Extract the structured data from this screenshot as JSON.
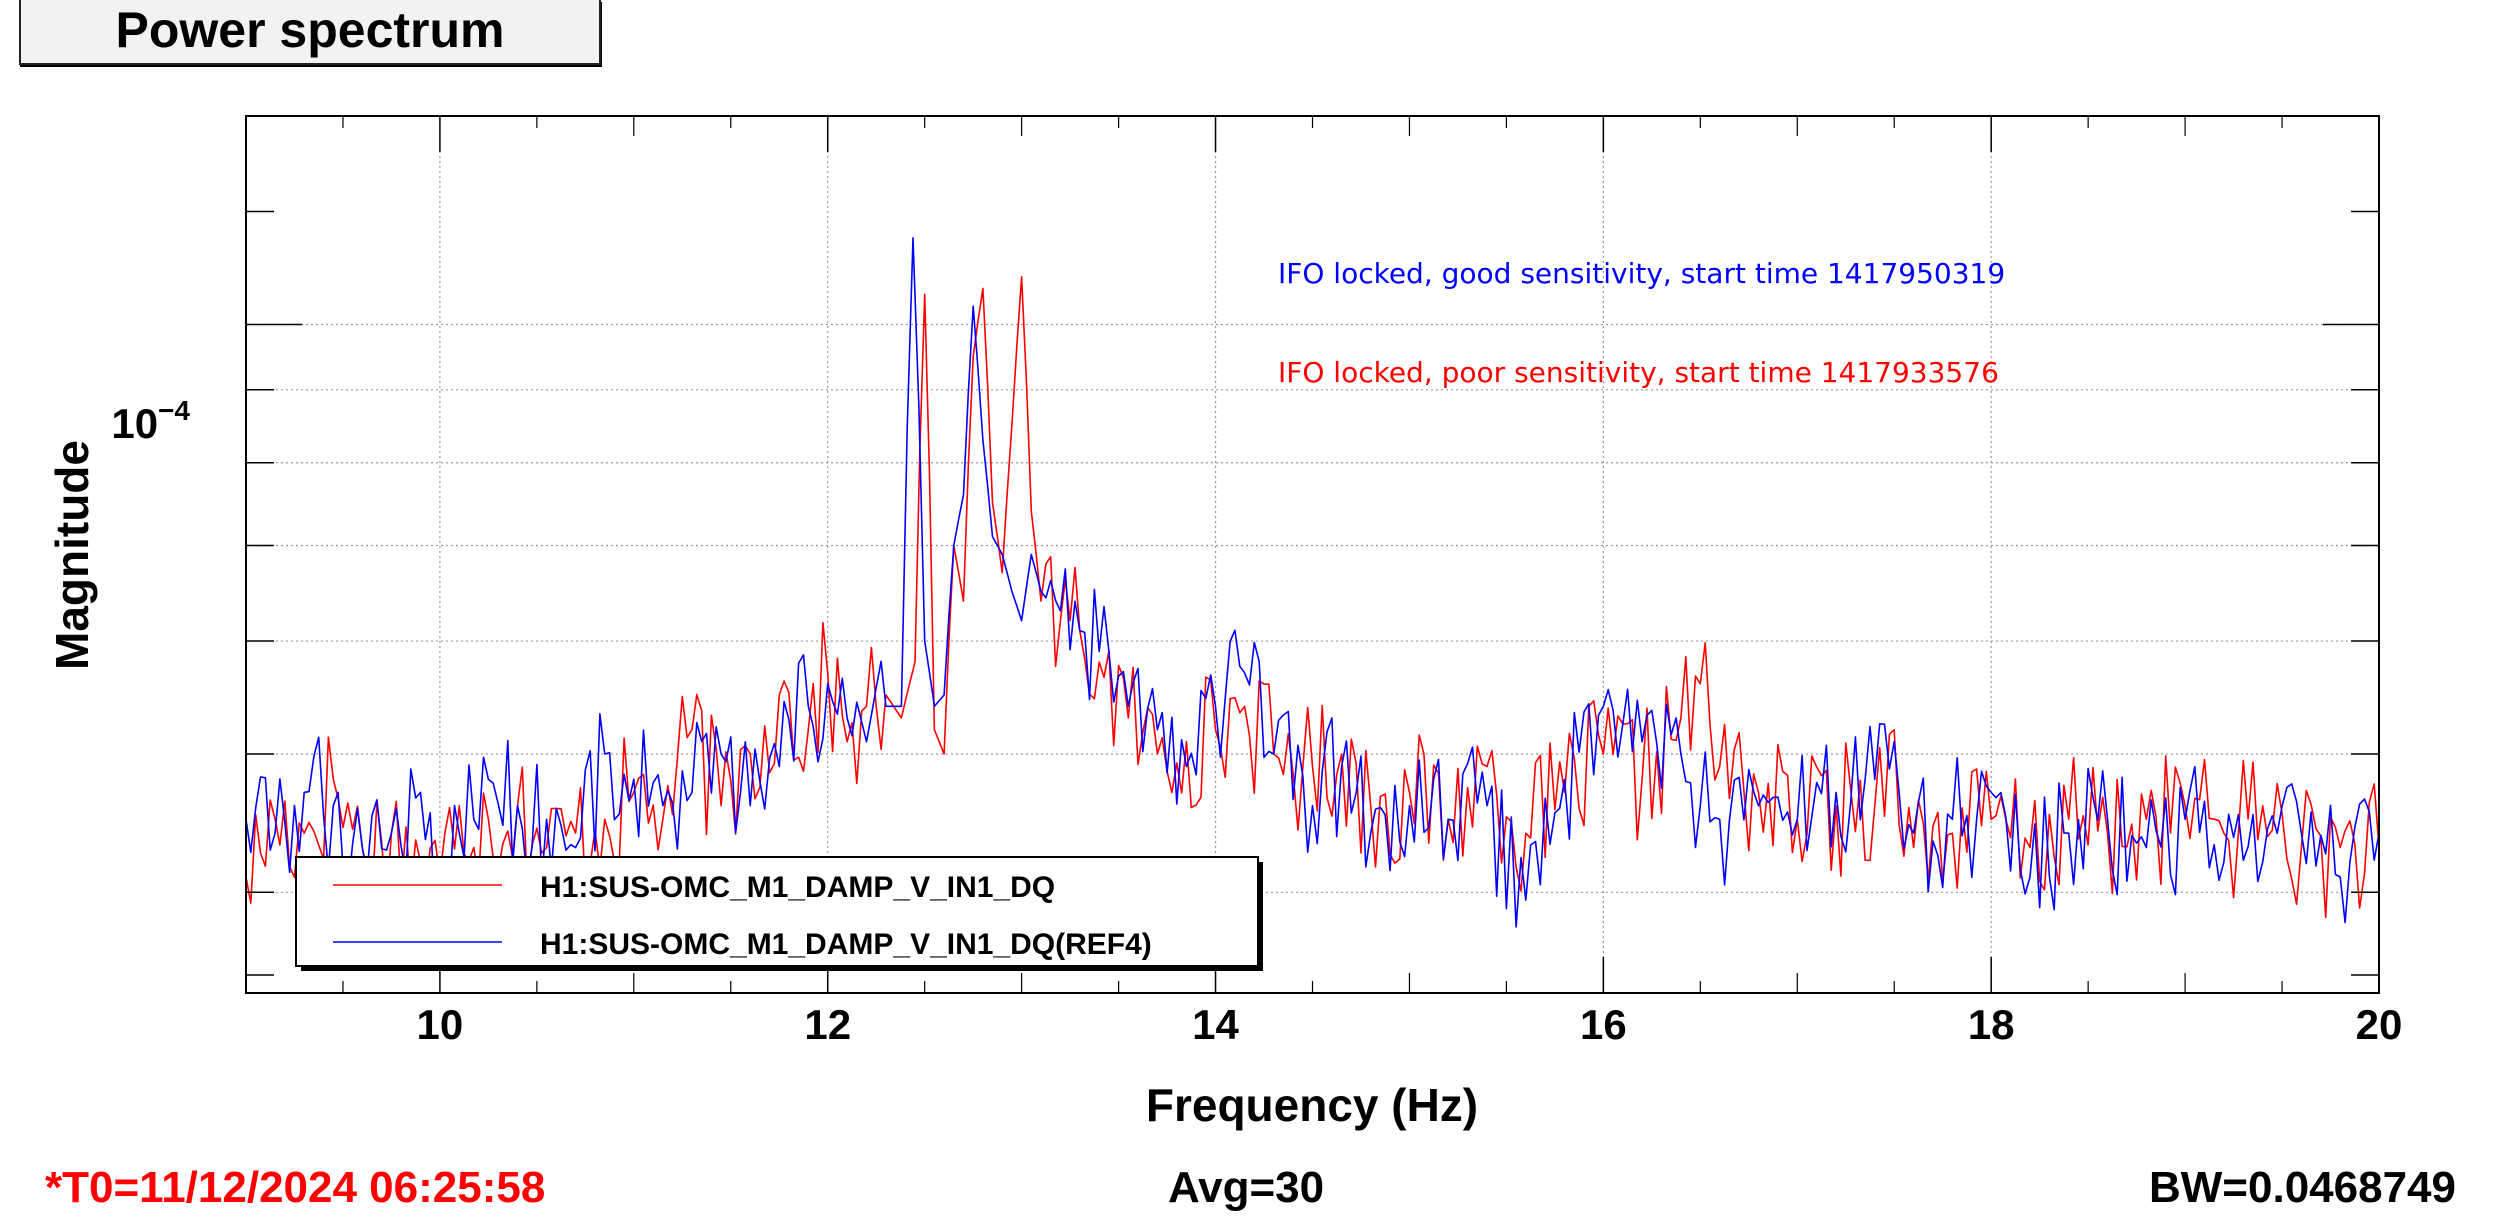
{
  "title": "Power spectrum",
  "footer": {
    "t0": "*T0=11/12/2024 06:25:58",
    "avg": "Avg=30",
    "bw": "BW=0.0468749"
  },
  "colors": {
    "red": "#ff0000",
    "blue": "#0000ff",
    "grid": "#9a9a9a",
    "axis": "#000000"
  },
  "chart_data": {
    "type": "line",
    "xlabel": "Frequency (Hz)",
    "ylabel": "Magnitude",
    "xlim": [
      9,
      20
    ],
    "ylim": [
      3.4e-05,
      0.00014
    ],
    "yscale": "log",
    "grid": true,
    "x_ticks": [
      10,
      12,
      14,
      16,
      18,
      20
    ],
    "x_tick_labels": [
      "10",
      "12",
      "14",
      "16",
      "18",
      "20"
    ],
    "y_tick_label_base": "10",
    "y_tick_label_exp": "−4",
    "y_tick_label_value": 0.0001,
    "annotations": [
      {
        "text": "IFO locked, good sensitivity, start time 1417950319",
        "color": "#0000ff"
      },
      {
        "text": "IFO locked, poor sensitivity, start time 1417933576",
        "color": "#ff0000"
      }
    ],
    "legend": {
      "placement": "bottom-left",
      "entries": [
        {
          "label": "H1:SUS-OMC_M1_DAMP_V_IN1_DQ",
          "color": "#ff0000"
        },
        {
          "label": "H1:SUS-OMC_M1_DAMP_V_IN1_DQ(REF4)",
          "color": "#0000ff"
        }
      ]
    },
    "series": [
      {
        "name": "H1:SUS-OMC_M1_DAMP_V_IN1_DQ",
        "color": "#ff0000",
        "x": [
          9.0,
          9.15,
          9.3,
          9.45,
          9.6,
          9.75,
          9.9,
          10.0,
          10.1,
          10.25,
          10.4,
          10.55,
          10.7,
          10.85,
          11.0,
          11.15,
          11.3,
          11.45,
          11.6,
          11.75,
          11.9,
          12.0,
          12.1,
          12.2,
          12.3,
          12.38,
          12.45,
          12.5,
          12.55,
          12.6,
          12.65,
          12.7,
          12.75,
          12.8,
          12.85,
          12.9,
          12.95,
          13.0,
          13.05,
          13.1,
          13.2,
          13.3,
          13.4,
          13.55,
          13.7,
          13.85,
          14.0,
          14.15,
          14.3,
          14.5,
          14.65,
          14.8,
          15.0,
          15.2,
          15.4,
          15.6,
          15.8,
          16.0,
          16.2,
          16.4,
          16.5,
          16.6,
          16.8,
          17.0,
          17.2,
          17.4,
          17.5,
          17.6,
          17.8,
          18.0,
          18.2,
          18.4,
          18.6,
          18.8,
          19.0,
          19.2,
          19.4,
          19.6,
          19.8,
          20.0
        ],
        "y": [
          4.1e-05,
          4.5e-05,
          4.4e-05,
          4.8e-05,
          4.3e-05,
          4.4e-05,
          4.2e-05,
          4.1e-05,
          4.6e-05,
          4.5e-05,
          4.6e-05,
          4.3e-05,
          4.4e-05,
          4.5e-05,
          4.7e-05,
          4.5e-05,
          5.2e-05,
          4.6e-05,
          5e-05,
          5.5e-05,
          5.2e-05,
          5.7e-05,
          5.1e-05,
          5.4e-05,
          5.5e-05,
          5.3e-05,
          5.8e-05,
          0.000105,
          5.2e-05,
          5e-05,
          7e-05,
          6.4e-05,
          9.5e-05,
          0.000106,
          7.5e-05,
          6.7e-05,
          8.5e-05,
          0.000108,
          7.4e-05,
          6.4e-05,
          6.2e-05,
          6.1e-05,
          5.8e-05,
          5.3e-05,
          5e-05,
          5.1e-05,
          5.2e-05,
          5.4e-05,
          5e-05,
          4.9e-05,
          5e-05,
          4.6e-05,
          4.7e-05,
          4.5e-05,
          4.9e-05,
          4.4e-05,
          4.7e-05,
          5e-05,
          4.8e-05,
          5.3e-05,
          5.6e-05,
          4.9e-05,
          4.7e-05,
          4.5e-05,
          4.6e-05,
          4.6e-05,
          5.2e-05,
          4.3e-05,
          4.4e-05,
          4.5e-05,
          4.3e-05,
          4.5e-05,
          4.4e-05,
          4.5e-05,
          4.6e-05,
          4.4e-05,
          4.6e-05,
          4.3e-05,
          4.3e-05,
          4.3e-05
        ]
      },
      {
        "name": "H1:SUS-OMC_M1_DAMP_V_IN1_DQ(REF4)",
        "color": "#0000ff",
        "x": [
          9.0,
          9.15,
          9.3,
          9.45,
          9.6,
          9.75,
          9.9,
          10.0,
          10.1,
          10.25,
          10.4,
          10.55,
          10.7,
          10.85,
          11.0,
          11.15,
          11.3,
          11.45,
          11.6,
          11.75,
          11.9,
          12.0,
          12.1,
          12.2,
          12.3,
          12.38,
          12.44,
          12.5,
          12.55,
          12.6,
          12.65,
          12.7,
          12.75,
          12.8,
          12.85,
          12.9,
          12.95,
          13.0,
          13.05,
          13.1,
          13.2,
          13.3,
          13.4,
          13.55,
          13.7,
          13.85,
          14.0,
          14.15,
          14.3,
          14.5,
          14.65,
          14.8,
          15.0,
          15.2,
          15.4,
          15.6,
          15.8,
          16.0,
          16.2,
          16.4,
          16.5,
          16.6,
          16.8,
          17.0,
          17.2,
          17.4,
          17.5,
          17.6,
          17.8,
          18.0,
          18.2,
          18.4,
          18.6,
          18.8,
          19.0,
          19.2,
          19.4,
          19.6,
          19.8,
          20.0
        ],
        "y": [
          4.5e-05,
          4.4e-05,
          4.7e-05,
          4.6e-05,
          4.3e-05,
          4.4e-05,
          4.7e-05,
          4e-05,
          4.4e-05,
          4.8e-05,
          4.6e-05,
          4.5e-05,
          4.3e-05,
          5e-05,
          4.8e-05,
          4.6e-05,
          4.7e-05,
          5e-05,
          4.6e-05,
          4.9e-05,
          5.4e-05,
          5.6e-05,
          5.3e-05,
          5.1e-05,
          5.4e-05,
          5.4e-05,
          0.000115,
          6e-05,
          5.4e-05,
          5.5e-05,
          7e-05,
          7.6e-05,
          0.000103,
          8.3e-05,
          7.1e-05,
          6.9e-05,
          6.5e-05,
          6.2e-05,
          6.9e-05,
          6.5e-05,
          6.3e-05,
          6.1e-05,
          5.9e-05,
          5.4e-05,
          5.2e-05,
          4.9e-05,
          5.4e-05,
          5.7e-05,
          5e-05,
          4.6e-05,
          4.9e-05,
          4.4e-05,
          4.6e-05,
          4.5e-05,
          4.6e-05,
          3.95e-05,
          4.8e-05,
          5.4e-05,
          5.1e-05,
          5e-05,
          4.6e-05,
          4.5e-05,
          4.6e-05,
          4.5e-05,
          4.7e-05,
          4.8e-05,
          5.1e-05,
          4.4e-05,
          4.5e-05,
          4.7e-05,
          4.1e-05,
          4.4e-05,
          4.5e-05,
          4.3e-05,
          4.5e-05,
          4.2e-05,
          4.2e-05,
          4.4e-05,
          4.1e-05,
          4.4e-05
        ]
      }
    ]
  }
}
